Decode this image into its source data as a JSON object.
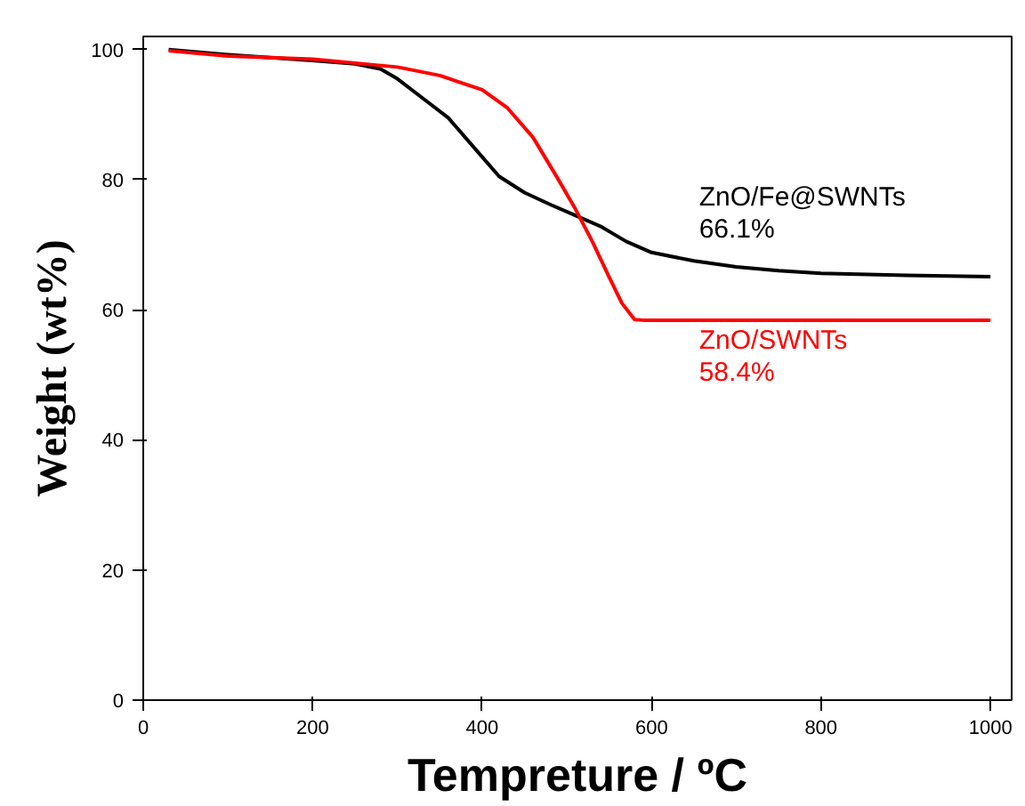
{
  "chart_data": {
    "type": "line",
    "xlabel": "Tempreture / ºC",
    "ylabel": "Weight (wt%)",
    "xlim": [
      0,
      1025
    ],
    "ylim": [
      0,
      102
    ],
    "xticks": [
      0,
      200,
      400,
      600,
      800,
      1000
    ],
    "yticks": [
      0,
      20,
      40,
      60,
      80,
      100
    ],
    "grid": false,
    "marker": "none",
    "line_style": "solid",
    "series": [
      {
        "name": "ZnO/Fe@SWNTs",
        "color": "#000000",
        "x": [
          30,
          100,
          200,
          250,
          280,
          300,
          330,
          360,
          390,
          420,
          450,
          480,
          510,
          540,
          570,
          600,
          650,
          700,
          750,
          800,
          900,
          1000
        ],
        "values": [
          100,
          99.2,
          98.3,
          97.8,
          97,
          95.5,
          92.5,
          89.5,
          85,
          80.5,
          78,
          76.2,
          74.5,
          72.8,
          70.5,
          68.8,
          67.5,
          66.6,
          66,
          65.6,
          65.3,
          65.1
        ]
      },
      {
        "name": "ZnO/SWNTs",
        "color": "#ff0000",
        "x": [
          30,
          100,
          200,
          300,
          350,
          400,
          430,
          460,
          490,
          510,
          530,
          550,
          565,
          580,
          590,
          650,
          800,
          1000
        ],
        "values": [
          99.8,
          99,
          98.5,
          97.3,
          96,
          93.8,
          91,
          86.5,
          80,
          75.5,
          70.5,
          65,
          61,
          58.5,
          58.4,
          58.4,
          58.4,
          58.4
        ]
      }
    ],
    "annotations": [
      "66.1%",
      "58.4%"
    ]
  }
}
